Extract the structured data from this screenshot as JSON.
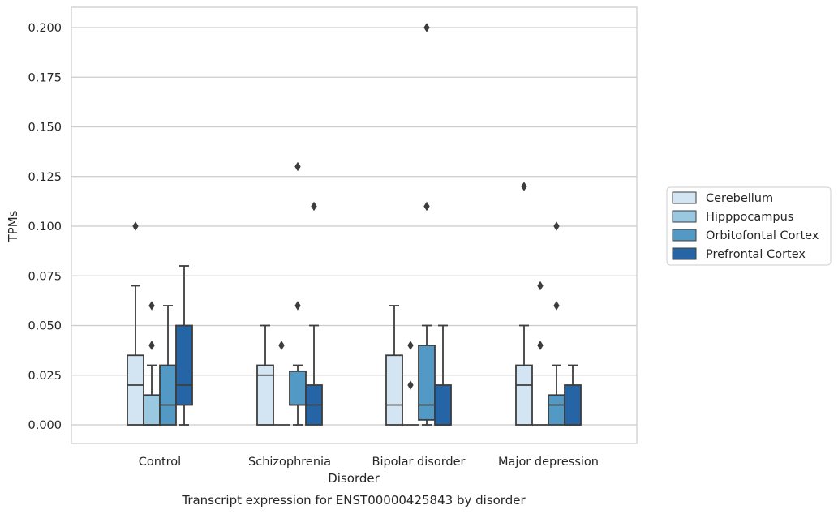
{
  "chart_data": {
    "type": "box",
    "title": "Transcript expression for ENST00000425843 by disorder",
    "xlabel": "Disorder",
    "ylabel": "TPMs",
    "ylim": [
      -0.01,
      0.21
    ],
    "yticks": [
      "0.000",
      "0.025",
      "0.050",
      "0.075",
      "0.100",
      "0.125",
      "0.150",
      "0.175",
      "0.200"
    ],
    "grid": "horizontal",
    "legend_position": "right",
    "categories": [
      "Control",
      "Schizophrenia",
      "Bipolar disorder",
      "Major depression"
    ],
    "series": [
      {
        "name": "Cerebellum",
        "color": "#d3e4f3",
        "boxes": [
          {
            "q1": 0.0,
            "median": 0.02,
            "q3": 0.035,
            "whisker_low": 0.0,
            "whisker_high": 0.07,
            "outliers": [
              0.1
            ]
          },
          {
            "q1": 0.0,
            "median": 0.025,
            "q3": 0.03,
            "whisker_low": 0.0,
            "whisker_high": 0.05,
            "outliers": []
          },
          {
            "q1": 0.0,
            "median": 0.01,
            "q3": 0.035,
            "whisker_low": 0.0,
            "whisker_high": 0.06,
            "outliers": []
          },
          {
            "q1": 0.0,
            "median": 0.02,
            "q3": 0.03,
            "whisker_low": 0.0,
            "whisker_high": 0.05,
            "outliers": [
              0.12
            ]
          }
        ]
      },
      {
        "name": "Hipppocampus",
        "color": "#9ac8e0",
        "boxes": [
          {
            "q1": 0.0,
            "median": 0.0,
            "q3": 0.015,
            "whisker_low": 0.0,
            "whisker_high": 0.03,
            "outliers": [
              0.04,
              0.04,
              0.06
            ]
          },
          {
            "q1": 0.0,
            "median": 0.0,
            "q3": 0.0,
            "whisker_low": 0.0,
            "whisker_high": 0.0,
            "outliers": [
              0.04,
              0.04
            ]
          },
          {
            "q1": 0.0,
            "median": 0.0,
            "q3": 0.0,
            "whisker_low": 0.0,
            "whisker_high": 0.0,
            "outliers": [
              0.02,
              0.04
            ]
          },
          {
            "q1": 0.0,
            "median": 0.0,
            "q3": 0.0,
            "whisker_low": 0.0,
            "whisker_high": 0.0,
            "outliers": [
              0.04,
              0.04,
              0.07
            ]
          }
        ]
      },
      {
        "name": "Orbitofontal Cortex",
        "color": "#5399c6",
        "boxes": [
          {
            "q1": 0.0,
            "median": 0.01,
            "q3": 0.03,
            "whisker_low": 0.0,
            "whisker_high": 0.06,
            "outliers": []
          },
          {
            "q1": 0.01,
            "median": 0.01,
            "q3": 0.027,
            "whisker_low": 0.0,
            "whisker_high": 0.03,
            "outliers": [
              0.06,
              0.13
            ]
          },
          {
            "q1": 0.0025,
            "median": 0.01,
            "q3": 0.04,
            "whisker_low": 0.0,
            "whisker_high": 0.05,
            "outliers": [
              0.11,
              0.2
            ]
          },
          {
            "q1": 0.0,
            "median": 0.01,
            "q3": 0.015,
            "whisker_low": 0.0,
            "whisker_high": 0.03,
            "outliers": [
              0.06,
              0.1
            ]
          }
        ]
      },
      {
        "name": "Prefrontal Cortex",
        "color": "#2565a6",
        "boxes": [
          {
            "q1": 0.01,
            "median": 0.02,
            "q3": 0.05,
            "whisker_low": 0.0,
            "whisker_high": 0.08,
            "outliers": []
          },
          {
            "q1": 0.0,
            "median": 0.01,
            "q3": 0.02,
            "whisker_low": 0.0,
            "whisker_high": 0.05,
            "outliers": [
              0.11
            ]
          },
          {
            "q1": 0.0,
            "median": 0.0,
            "q3": 0.02,
            "whisker_low": 0.0,
            "whisker_high": 0.05,
            "outliers": []
          },
          {
            "q1": 0.0,
            "median": 0.0,
            "q3": 0.02,
            "whisker_low": 0.0,
            "whisker_high": 0.03,
            "outliers": []
          }
        ]
      }
    ]
  }
}
